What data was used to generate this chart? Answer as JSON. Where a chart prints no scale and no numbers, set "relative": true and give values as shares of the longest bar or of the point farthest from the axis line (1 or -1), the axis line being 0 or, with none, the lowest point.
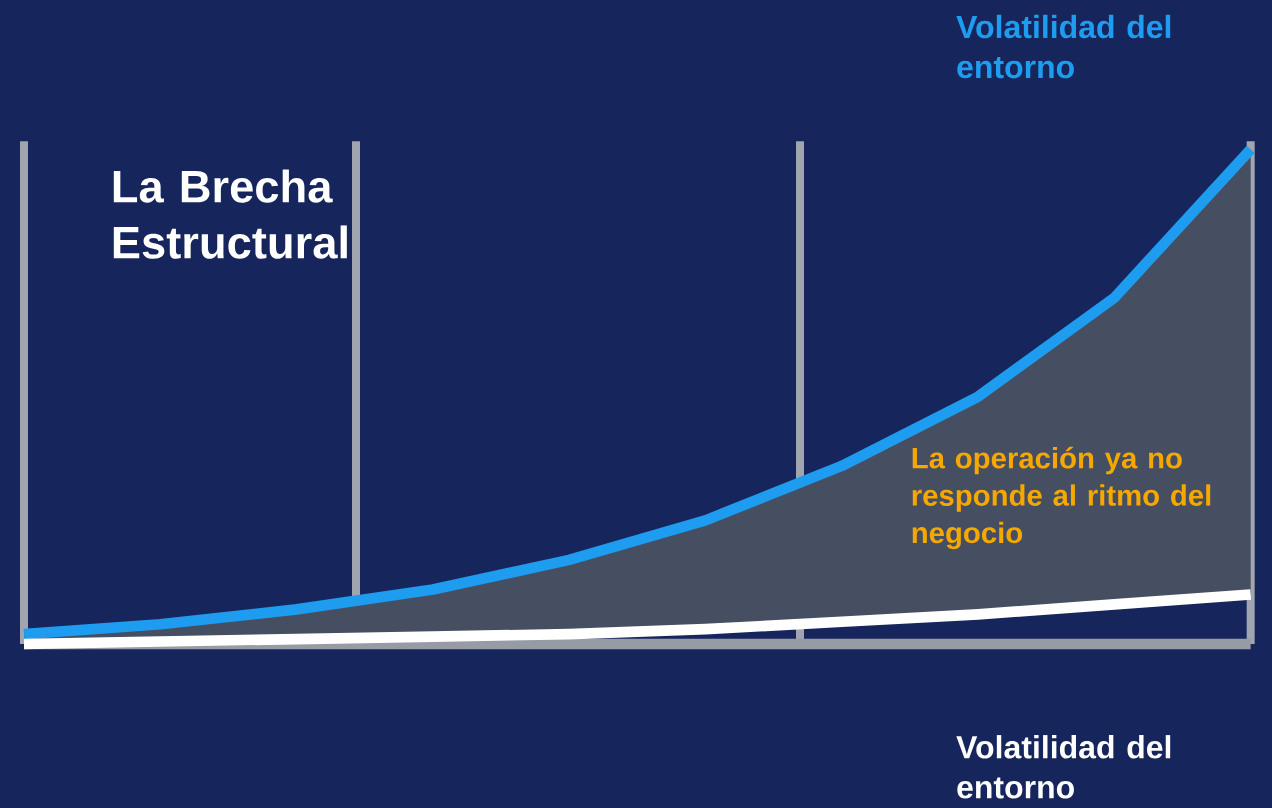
{
  "chart_data": {
    "type": "line",
    "title": "La Brecha Estructural",
    "xlabel": "Volatilidad del entorno",
    "relative": true,
    "categories": [
      null,
      null,
      null,
      null,
      null,
      null,
      null,
      null,
      null,
      null
    ],
    "marker": "none",
    "line_style": "solid",
    "annotations": [
      "La operación ya no responde al ritmo del negocio"
    ],
    "series": [
      {
        "name": "Volatilidad del entorno",
        "color": "#1e9cf0",
        "values": [
          0.02,
          0.04,
          0.07,
          0.11,
          0.17,
          0.25,
          0.36,
          0.5,
          0.7,
          1
        ],
        "lower": [
          0,
          0.005,
          0.01,
          0.015,
          0.02,
          0.03,
          0.045,
          0.06,
          0.08,
          0.1
        ],
        "upper": [
          0.02,
          0.04,
          0.07,
          0.11,
          0.17,
          0.25,
          0.36,
          0.5,
          0.7,
          1
        ]
      },
      {
        "color": "#ffffff",
        "values": [
          0,
          0.005,
          0.01,
          0.015,
          0.02,
          0.03,
          0.045,
          0.06,
          0.08,
          0.1
        ]
      }
    ]
  }
}
